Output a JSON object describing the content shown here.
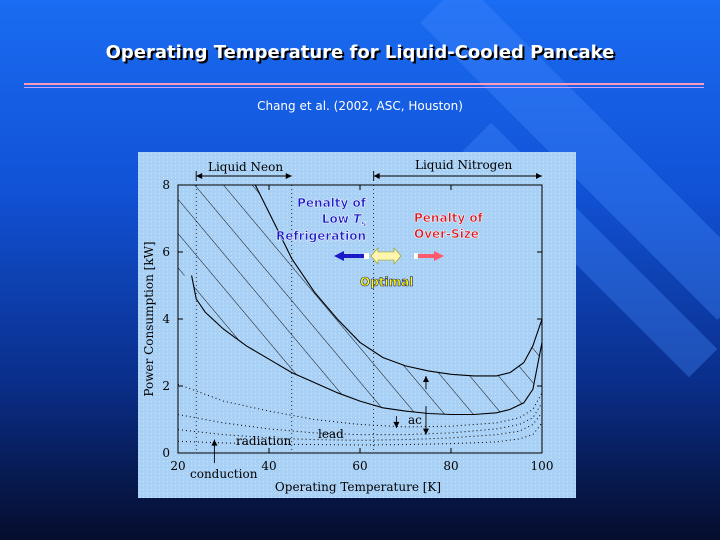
{
  "slide": {
    "title": "Operating Temperature for Liquid-Cooled Pancake",
    "subtitle": "Chang et al. (2002, ASC, Houston)"
  },
  "colors": {
    "background_top": "#1a6cf2",
    "panel": "#a9d0f5",
    "title_shadow": "#000000",
    "penalty_low_text": "#1a1ac8",
    "penalty_over_text": "#d8181e",
    "optimal_text": "#ffff00",
    "arrow_left": "#1a1ac8",
    "arrow_right": "#ff5a6a"
  },
  "chart_data": {
    "type": "line",
    "xlabel": "Operating Temperature [K]",
    "ylabel": "Power Consumption [kW]",
    "xlim": [
      20,
      100
    ],
    "ylim": [
      0,
      8
    ],
    "x_ticks": [
      20,
      40,
      60,
      80,
      100
    ],
    "y_ticks": [
      0,
      2,
      4,
      6,
      8
    ],
    "regions": [
      {
        "label": "Liquid Neon",
        "x_range": [
          24,
          45
        ]
      },
      {
        "label": "Liquid Nitrogen",
        "x_range": [
          63,
          100
        ]
      }
    ],
    "series": [
      {
        "style": "solid-upper",
        "x": [
          37,
          41,
          45,
          50,
          55,
          60,
          65,
          70,
          75,
          80,
          85,
          90,
          93,
          96,
          98,
          100
        ],
        "y": [
          8.0,
          6.9,
          5.8,
          4.8,
          4.0,
          3.3,
          2.85,
          2.6,
          2.45,
          2.35,
          2.3,
          2.3,
          2.4,
          2.7,
          3.2,
          4.0
        ]
      },
      {
        "style": "solid-lower",
        "x": [
          23,
          24,
          26,
          30,
          35,
          40,
          45,
          50,
          55,
          60,
          65,
          70,
          75,
          80,
          85,
          90,
          93,
          96,
          98,
          100
        ],
        "y": [
          5.3,
          4.6,
          4.2,
          3.7,
          3.2,
          2.8,
          2.4,
          2.1,
          1.8,
          1.55,
          1.35,
          1.25,
          1.18,
          1.15,
          1.15,
          1.2,
          1.3,
          1.5,
          1.9,
          3.3
        ]
      },
      {
        "style": "dotted",
        "x": [
          20,
          30,
          40,
          50,
          60,
          70,
          80,
          90,
          95,
          98,
          100
        ],
        "y": [
          2.05,
          1.55,
          1.25,
          1.0,
          0.85,
          0.78,
          0.8,
          0.9,
          1.05,
          1.3,
          1.8
        ]
      },
      {
        "style": "dotted",
        "x": [
          20,
          30,
          40,
          50,
          60,
          70,
          80,
          90,
          95,
          98,
          100
        ],
        "y": [
          1.15,
          0.9,
          0.72,
          0.6,
          0.55,
          0.55,
          0.6,
          0.72,
          0.85,
          1.05,
          1.5
        ]
      },
      {
        "style": "dotted",
        "x": [
          20,
          30,
          40,
          50,
          60,
          70,
          80,
          90,
          95,
          98,
          100
        ],
        "y": [
          0.7,
          0.55,
          0.45,
          0.4,
          0.38,
          0.4,
          0.45,
          0.55,
          0.65,
          0.85,
          1.2
        ]
      },
      {
        "style": "dotted",
        "x": [
          20,
          30,
          40,
          50,
          60,
          70,
          80,
          90,
          95,
          98,
          100
        ],
        "y": [
          0.35,
          0.3,
          0.27,
          0.25,
          0.24,
          0.25,
          0.28,
          0.33,
          0.42,
          0.55,
          0.9
        ]
      }
    ],
    "vlines": [
      24,
      45,
      63
    ],
    "annotations": {
      "liquid_neon": "Liquid Neon",
      "liquid_nitrogen": "Liquid Nitrogen",
      "penalty_low_1": "Penalty of",
      "penalty_low_2": "Low",
      "penalty_low_T": "T",
      "penalty_low_sub": "s",
      "penalty_low_3": "Refrigeration",
      "penalty_over_1": "Penalty of",
      "penalty_over_2": "Over-Size",
      "optimal": "Optimal",
      "radiation": "radiation",
      "lead": "lead",
      "ac": "ac",
      "conduction": "conduction"
    }
  }
}
